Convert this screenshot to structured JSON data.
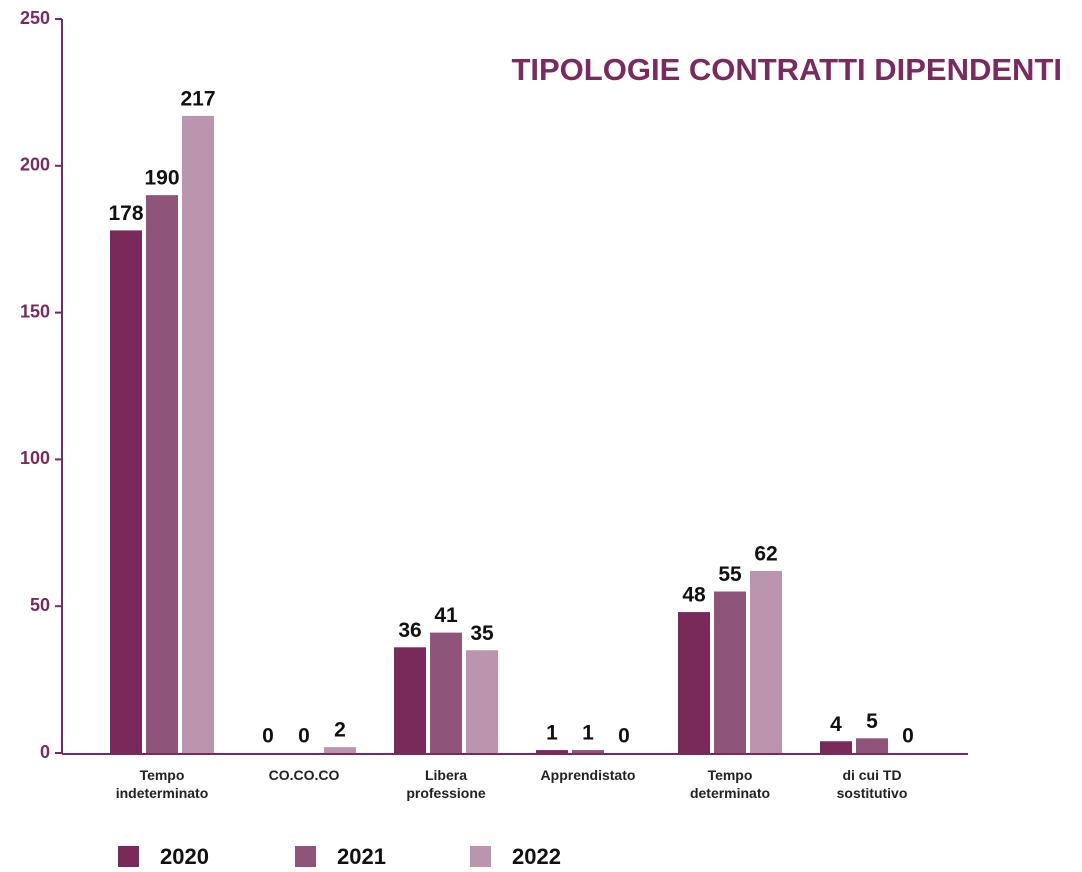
{
  "chart_data": {
    "type": "bar",
    "title": "TIPOLOGIE CONTRATTI DIPENDENTI",
    "categories": [
      [
        "Tempo",
        "indeterminato"
      ],
      [
        "CO.CO.CO"
      ],
      [
        "Libera",
        "professione"
      ],
      [
        "Apprendistato"
      ],
      [
        "Tempo",
        "determinato"
      ],
      [
        "di cui TD",
        "sostitutivo"
      ]
    ],
    "series": [
      {
        "name": "2020",
        "color": "#7a2a5a",
        "values": [
          178,
          0,
          36,
          1,
          48,
          4
        ]
      },
      {
        "name": "2021",
        "color": "#8e5479",
        "values": [
          190,
          0,
          41,
          1,
          55,
          5
        ]
      },
      {
        "name": "2022",
        "color": "#bb94ad",
        "values": [
          217,
          2,
          35,
          0,
          62,
          0
        ]
      }
    ],
    "ylim": [
      0,
      250
    ],
    "yticks": [
      0,
      50,
      100,
      150,
      200,
      250
    ],
    "legend": "bottom"
  }
}
